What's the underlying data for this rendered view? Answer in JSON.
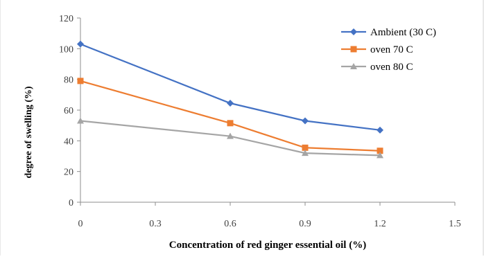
{
  "chart_data": {
    "type": "line",
    "xlabel": "Concentration of red ginger essential oil (%)",
    "ylabel": "degree of  swelling (%)",
    "xlim": [
      0,
      1.5
    ],
    "ylim": [
      0,
      120
    ],
    "xticks": [
      "0",
      "0.3",
      "0.6",
      "0.9",
      "1.2",
      "1.5"
    ],
    "yticks": [
      "0",
      "20",
      "40",
      "60",
      "80",
      "100",
      "120"
    ],
    "x": [
      0,
      0.6,
      0.9,
      1.2
    ],
    "grid": false,
    "legend_position": "top-right",
    "series": [
      {
        "name": "Ambient (30 C)",
        "values": [
          103,
          64.5,
          53,
          47
        ],
        "color": "#4472C4",
        "marker": "diamond"
      },
      {
        "name": "oven 70 C",
        "values": [
          79,
          51.5,
          35.5,
          33.5
        ],
        "color": "#ED7D31",
        "marker": "square"
      },
      {
        "name": "oven 80 C",
        "values": [
          53,
          43,
          32,
          30.5
        ],
        "color": "#A5A5A5",
        "marker": "triangle"
      }
    ]
  }
}
